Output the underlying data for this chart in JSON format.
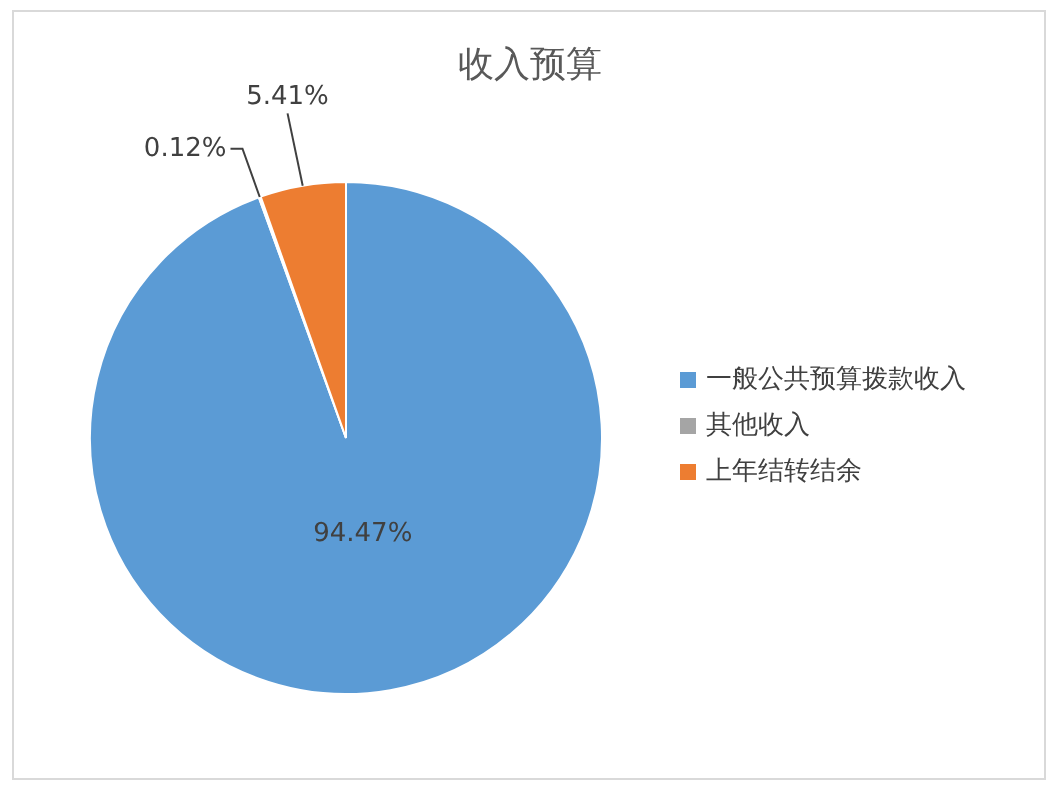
{
  "chart_data": {
    "type": "pie",
    "title": "收入预算",
    "categories": [
      "一般公共预算拨款收入",
      "其他收入",
      "上年结转结余"
    ],
    "values": [
      94.47,
      0.12,
      5.41
    ],
    "colors": [
      "#5b9bd5",
      "#a5a5a5",
      "#ed7d31"
    ],
    "value_labels": [
      "94.47%",
      "0.12%",
      "5.41%"
    ],
    "legend": "right"
  }
}
